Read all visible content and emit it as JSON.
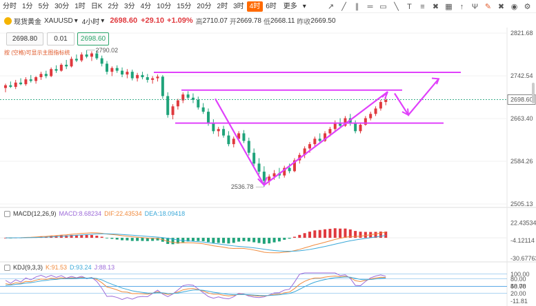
{
  "timeframes": [
    "分时",
    "1分",
    "5分",
    "30分",
    "1时",
    "日K",
    "2分",
    "3分",
    "4分",
    "10分",
    "15分",
    "20分",
    "2时",
    "3时",
    "4时",
    "6时"
  ],
  "active_timeframe_index": 14,
  "more_label": "更多",
  "symbol": {
    "name": "现货黄金",
    "code": "XAUUSD",
    "period": "4小时",
    "last": "2698.60",
    "change": "+29.10",
    "change_pct": "+1.09%",
    "high_label": "高",
    "high": "2710.07",
    "open_label": "开",
    "open": "2669.78",
    "low_label": "低",
    "low": "2668.11",
    "prev_label": "昨收",
    "prev": "2669.50"
  },
  "trade": {
    "sell": "2698.80",
    "qty": "0.01",
    "buy": "2698.60"
  },
  "hint": "按 (空格)可显示主图指标统",
  "price_axis": [
    "2821.68",
    "2742.54",
    "2663.40",
    "2584.26",
    "2505.13"
  ],
  "current_price_tag": "2698.60",
  "annotations": {
    "high": "2790.02",
    "low": "2536.78"
  },
  "macd": {
    "title": "MACD(12,26,9)",
    "macd_label": "MACD:8.68234",
    "dif_label": "DIF:22.43534",
    "dea_label": "DEA:18.09418",
    "axis": [
      "22.43534",
      "-4.12114",
      "-30.67763"
    ]
  },
  "kdj": {
    "title": "KDJ(9,3,3)",
    "k_label": "K:91.53",
    "d_label": "D:93.24",
    "j_label": "J:88.13",
    "axis": [
      "100.00",
      "80.00",
      "50.00",
      "48.78",
      "20.00",
      "-11.81"
    ]
  },
  "colors": {
    "up": "#e0393e",
    "down": "#1fa37a",
    "drawing": "#e040fb",
    "accent": "#ff6a00",
    "dif": "#f08a3c",
    "dea": "#3aa8d8",
    "k": "#f08a3c",
    "d": "#3aa8d8",
    "j": "#9c6ad8"
  },
  "chart_data": {
    "type": "candlestick",
    "ohlc": [
      [
        2720,
        2728,
        2712,
        2725
      ],
      [
        2725,
        2732,
        2720,
        2722
      ],
      [
        2722,
        2735,
        2718,
        2730
      ],
      [
        2730,
        2738,
        2725,
        2727
      ],
      [
        2727,
        2740,
        2724,
        2736
      ],
      [
        2736,
        2744,
        2730,
        2733
      ],
      [
        2733,
        2742,
        2728,
        2740
      ],
      [
        2740,
        2750,
        2735,
        2746
      ],
      [
        2746,
        2752,
        2738,
        2742
      ],
      [
        2742,
        2758,
        2740,
        2755
      ],
      [
        2755,
        2762,
        2748,
        2752
      ],
      [
        2752,
        2766,
        2750,
        2763
      ],
      [
        2763,
        2772,
        2755,
        2760
      ],
      [
        2760,
        2778,
        2758,
        2774
      ],
      [
        2774,
        2782,
        2768,
        2771
      ],
      [
        2771,
        2786,
        2768,
        2782
      ],
      [
        2782,
        2790,
        2775,
        2778
      ],
      [
        2778,
        2788,
        2770,
        2784
      ],
      [
        2784,
        2790,
        2772,
        2775
      ],
      [
        2775,
        2780,
        2760,
        2765
      ],
      [
        2765,
        2770,
        2745,
        2750
      ],
      [
        2750,
        2760,
        2742,
        2757
      ],
      [
        2757,
        2762,
        2748,
        2752
      ],
      [
        2752,
        2758,
        2740,
        2745
      ],
      [
        2745,
        2755,
        2738,
        2750
      ],
      [
        2750,
        2754,
        2734,
        2738
      ],
      [
        2738,
        2748,
        2732,
        2744
      ],
      [
        2744,
        2750,
        2736,
        2740
      ],
      [
        2740,
        2746,
        2730,
        2735
      ],
      [
        2735,
        2742,
        2728,
        2738
      ],
      [
        2738,
        2745,
        2732,
        2741
      ],
      [
        2741,
        2744,
        2700,
        2705
      ],
      [
        2705,
        2712,
        2665,
        2670
      ],
      [
        2670,
        2690,
        2662,
        2686
      ],
      [
        2686,
        2700,
        2680,
        2697
      ],
      [
        2697,
        2712,
        2692,
        2708
      ],
      [
        2708,
        2714,
        2698,
        2702
      ],
      [
        2702,
        2710,
        2692,
        2698
      ],
      [
        2698,
        2704,
        2680,
        2684
      ],
      [
        2684,
        2692,
        2672,
        2676
      ],
      [
        2676,
        2682,
        2650,
        2654
      ],
      [
        2654,
        2662,
        2635,
        2640
      ],
      [
        2640,
        2648,
        2630,
        2644
      ],
      [
        2644,
        2650,
        2628,
        2632
      ],
      [
        2632,
        2640,
        2612,
        2616
      ],
      [
        2616,
        2630,
        2610,
        2626
      ],
      [
        2626,
        2640,
        2622,
        2636
      ],
      [
        2636,
        2642,
        2618,
        2622
      ],
      [
        2622,
        2628,
        2595,
        2600
      ],
      [
        2600,
        2608,
        2575,
        2580
      ],
      [
        2580,
        2590,
        2560,
        2565
      ],
      [
        2565,
        2575,
        2537,
        2548
      ],
      [
        2548,
        2560,
        2540,
        2556
      ],
      [
        2556,
        2568,
        2550,
        2562
      ],
      [
        2562,
        2572,
        2552,
        2558
      ],
      [
        2558,
        2576,
        2554,
        2572
      ],
      [
        2572,
        2580,
        2562,
        2566
      ],
      [
        2566,
        2590,
        2564,
        2586
      ],
      [
        2586,
        2600,
        2580,
        2596
      ],
      [
        2596,
        2612,
        2590,
        2608
      ],
      [
        2608,
        2620,
        2600,
        2616
      ],
      [
        2616,
        2630,
        2612,
        2626
      ],
      [
        2626,
        2636,
        2618,
        2622
      ],
      [
        2622,
        2640,
        2620,
        2636
      ],
      [
        2636,
        2648,
        2630,
        2644
      ],
      [
        2644,
        2660,
        2640,
        2656
      ],
      [
        2656,
        2664,
        2646,
        2650
      ],
      [
        2650,
        2668,
        2648,
        2664
      ],
      [
        2664,
        2672,
        2650,
        2654
      ],
      [
        2654,
        2660,
        2636,
        2640
      ],
      [
        2640,
        2656,
        2636,
        2652
      ],
      [
        2652,
        2668,
        2650,
        2664
      ],
      [
        2664,
        2676,
        2660,
        2672
      ],
      [
        2672,
        2686,
        2668,
        2682
      ],
      [
        2682,
        2698,
        2678,
        2694
      ],
      [
        2694,
        2710,
        2688,
        2698
      ]
    ]
  }
}
